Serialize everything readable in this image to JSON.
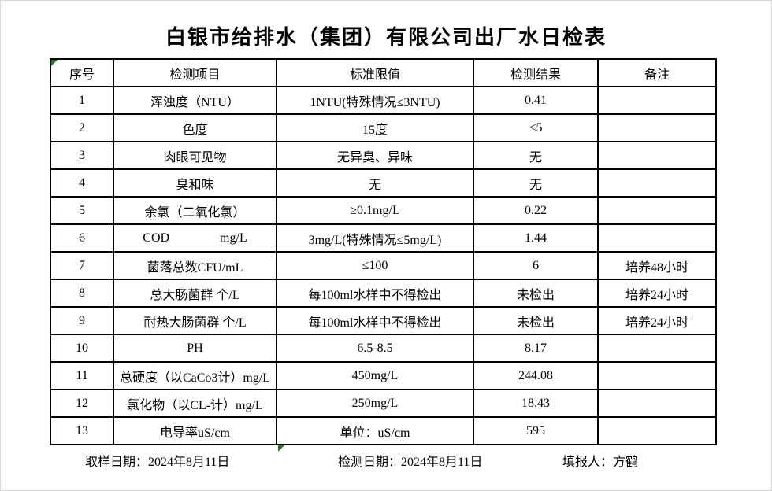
{
  "title": "白银市给排水（集团）有限公司出厂水日检表",
  "marker_color": "#1e7e1e",
  "table": {
    "headers": [
      "序号",
      "检测项目",
      "标准限值",
      "检测结果",
      "备注"
    ],
    "rows": [
      {
        "no": "1",
        "item": "浑浊度（NTU）",
        "standard": "1NTU(特殊情况≤3NTU)",
        "result": "0.41",
        "remark": ""
      },
      {
        "no": "2",
        "item": "色度",
        "standard": "15度",
        "result": "<5",
        "remark": ""
      },
      {
        "no": "3",
        "item": "肉眼可见物",
        "standard": "无异臭、异味",
        "result": "无",
        "remark": ""
      },
      {
        "no": "4",
        "item": "臭和味",
        "standard": "无",
        "result": "无",
        "remark": ""
      },
      {
        "no": "5",
        "item": "余氯（二氧化氯）",
        "standard": "≥0.1mg/L",
        "result": "0.22",
        "remark": ""
      },
      {
        "no": "6",
        "item": "COD                mg/L",
        "standard": "3mg/L(特殊情况≤5mg/L)",
        "result": "1.44",
        "remark": ""
      },
      {
        "no": "7",
        "item": "菌落总数CFU/mL",
        "standard": "≤100",
        "result": "6",
        "remark": "培养48小时"
      },
      {
        "no": "8",
        "item": "总大肠菌群 个/L",
        "standard": "每100ml水样中不得检出",
        "result": "未检出",
        "remark": "培养24小时"
      },
      {
        "no": "9",
        "item": "耐热大肠菌群 个/L",
        "standard": "每100ml水样中不得检出",
        "result": "未检出",
        "remark": "培养24小时"
      },
      {
        "no": "10",
        "item": "PH",
        "standard": "6.5-8.5",
        "result": "8.17",
        "remark": ""
      },
      {
        "no": "11",
        "item": "总硬度（以CaCo3计）mg/L",
        "standard": "450mg/L",
        "result": "244.08",
        "remark": ""
      },
      {
        "no": "12",
        "item": "氯化物（以CL-计）mg/L",
        "standard": "250mg/L",
        "result": "18.43",
        "remark": ""
      },
      {
        "no": "13",
        "item": "电导率uS/cm",
        "standard": "单位：uS/cm",
        "result": "595",
        "remark": ""
      }
    ]
  },
  "footer": {
    "sampling": "取样日期：2024年8月11日",
    "testing": "检测日期：2024年8月11日",
    "reporter": "填报人：方鹤"
  }
}
